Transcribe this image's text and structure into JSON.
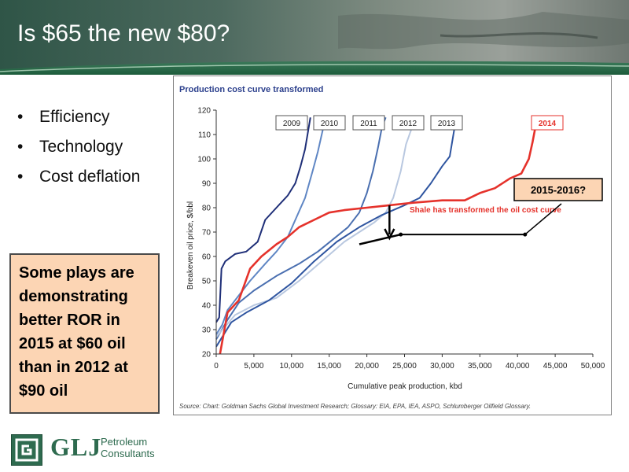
{
  "slide": {
    "title": "Is $65 the new $80?",
    "bullets": [
      "Efficiency",
      "Technology",
      "Cost deflation"
    ],
    "callout": "Some plays are demonstrating better ROR in 2015 at $60 oil than in 2012 at $90 oil",
    "logo": {
      "mark": "GLJ",
      "sub1": "Petroleum",
      "sub2": "Consultants"
    }
  },
  "chart_data": {
    "type": "line",
    "title": "Production cost curve transformed",
    "xlabel": "Cumulative peak production, kbd",
    "ylabel": "Breakeven oil price, $/bbl",
    "xlim": [
      0,
      50000
    ],
    "ylim": [
      20,
      120
    ],
    "xticks": [
      "0",
      "5,000",
      "10,000",
      "15,000",
      "20,000",
      "25,000",
      "30,000",
      "35,000",
      "40,000",
      "45,000",
      "50,000"
    ],
    "yticks": [
      "20",
      "30",
      "40",
      "50",
      "60",
      "70",
      "80",
      "90",
      "100",
      "110",
      "120"
    ],
    "source": "Source: Chart: Goldman Sachs Global Investment Research; Glossary: EIA, EPA, IEA, ASPO, Schlumberger Oilfield Glossary.",
    "annotations": {
      "shale": "Shale has transformed the oil cost curve",
      "future": "2015-2016?"
    },
    "colors": {
      "2009": "#1f2f78",
      "2010": "#5f86c4",
      "2011": "#4a6fb0",
      "2012": "#b9c8e0",
      "2013": "#2f55a0",
      "2014": "#e5322b"
    },
    "series": [
      {
        "name": "2009",
        "points": [
          [
            0,
            33
          ],
          [
            400,
            35
          ],
          [
            700,
            55
          ],
          [
            1200,
            58
          ],
          [
            2500,
            61
          ],
          [
            4000,
            62
          ],
          [
            5500,
            66
          ],
          [
            6500,
            75
          ],
          [
            8000,
            80
          ],
          [
            9500,
            85
          ],
          [
            10500,
            90
          ],
          [
            11200,
            97
          ],
          [
            11800,
            104
          ],
          [
            12500,
            117
          ]
        ]
      },
      {
        "name": "2010",
        "points": [
          [
            0,
            28
          ],
          [
            800,
            32
          ],
          [
            1500,
            38
          ],
          [
            3000,
            44
          ],
          [
            4500,
            50
          ],
          [
            6500,
            57
          ],
          [
            8000,
            62
          ],
          [
            9500,
            68
          ],
          [
            10500,
            75
          ],
          [
            11800,
            84
          ],
          [
            12800,
            95
          ],
          [
            13500,
            103
          ],
          [
            14300,
            114
          ],
          [
            15200,
            117
          ]
        ]
      },
      {
        "name": "2011",
        "points": [
          [
            0,
            26
          ],
          [
            1500,
            34
          ],
          [
            3000,
            41
          ],
          [
            5000,
            46
          ],
          [
            8000,
            52
          ],
          [
            11000,
            57
          ],
          [
            13500,
            62
          ],
          [
            15500,
            67
          ],
          [
            17500,
            72
          ],
          [
            19000,
            78
          ],
          [
            20000,
            86
          ],
          [
            20800,
            95
          ],
          [
            21500,
            105
          ],
          [
            22000,
            113
          ],
          [
            22500,
            117
          ]
        ]
      },
      {
        "name": "2012",
        "points": [
          [
            0,
            27
          ],
          [
            2500,
            36
          ],
          [
            5000,
            40
          ],
          [
            8000,
            43
          ],
          [
            11000,
            50
          ],
          [
            14000,
            58
          ],
          [
            17000,
            66
          ],
          [
            19000,
            70
          ],
          [
            21000,
            74
          ],
          [
            22500,
            78
          ],
          [
            23500,
            84
          ],
          [
            24500,
            95
          ],
          [
            25200,
            106
          ],
          [
            26000,
            113
          ],
          [
            26500,
            117
          ]
        ]
      },
      {
        "name": "2013",
        "points": [
          [
            0,
            23
          ],
          [
            2000,
            33
          ],
          [
            4000,
            37
          ],
          [
            7000,
            42
          ],
          [
            10000,
            49
          ],
          [
            13000,
            58
          ],
          [
            16000,
            66
          ],
          [
            19000,
            72
          ],
          [
            22000,
            77
          ],
          [
            25000,
            81
          ],
          [
            27000,
            84
          ],
          [
            28500,
            90
          ],
          [
            30000,
            97
          ],
          [
            31000,
            101
          ],
          [
            31600,
            112
          ],
          [
            32000,
            117
          ]
        ]
      },
      {
        "name": "2014",
        "points": [
          [
            500,
            20
          ],
          [
            1500,
            37
          ],
          [
            3000,
            42
          ],
          [
            4500,
            55
          ],
          [
            6000,
            60
          ],
          [
            8000,
            65
          ],
          [
            9500,
            68
          ],
          [
            11000,
            72
          ],
          [
            13000,
            75
          ],
          [
            15000,
            78
          ],
          [
            17000,
            79
          ],
          [
            20000,
            80
          ],
          [
            23000,
            81
          ],
          [
            26000,
            82
          ],
          [
            30000,
            83
          ],
          [
            33000,
            83
          ],
          [
            35000,
            86
          ],
          [
            37000,
            88
          ],
          [
            39000,
            92
          ],
          [
            40500,
            94
          ],
          [
            41500,
            100
          ],
          [
            42000,
            107
          ],
          [
            42500,
            115
          ]
        ]
      }
    ]
  }
}
